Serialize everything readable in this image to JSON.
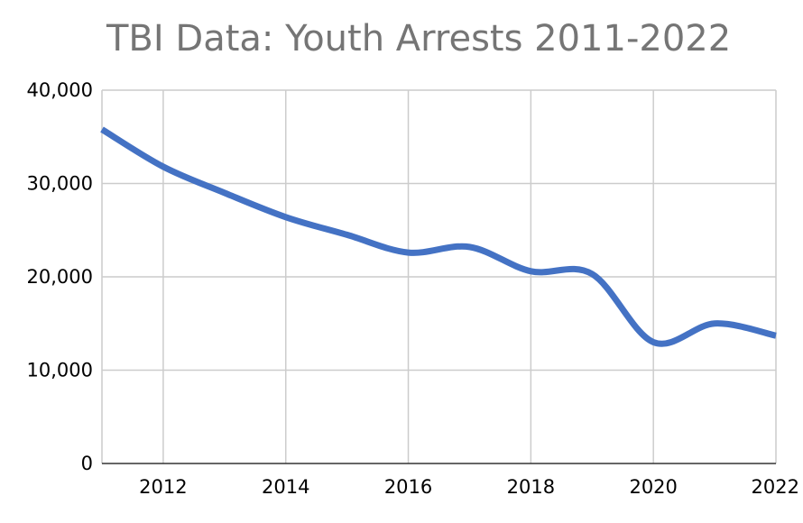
{
  "chart_data": {
    "type": "line",
    "title": "TBI Data: Youth Arrests 2011-2022",
    "xlabel": "",
    "ylabel": "",
    "x": [
      2011,
      2012,
      2013,
      2014,
      2015,
      2016,
      2017,
      2018,
      2019,
      2020,
      2021,
      2022
    ],
    "series": [
      {
        "name": "Youth Arrests",
        "color": "#4472c4",
        "values": [
          35800,
          31800,
          29000,
          26400,
          24500,
          22600,
          23200,
          20600,
          20300,
          13000,
          15000,
          13700
        ]
      }
    ],
    "xlim": [
      2011,
      2022
    ],
    "ylim": [
      0,
      40000
    ],
    "x_ticks": [
      2012,
      2014,
      2016,
      2018,
      2020,
      2022
    ],
    "x_tick_labels": [
      "2012",
      "2014",
      "2016",
      "2018",
      "2020",
      "2022"
    ],
    "y_ticks": [
      0,
      10000,
      20000,
      30000,
      40000
    ],
    "y_tick_labels": [
      "0",
      "10,000",
      "20,000",
      "30,000",
      "40,000"
    ],
    "grid": true,
    "legend": "none"
  }
}
